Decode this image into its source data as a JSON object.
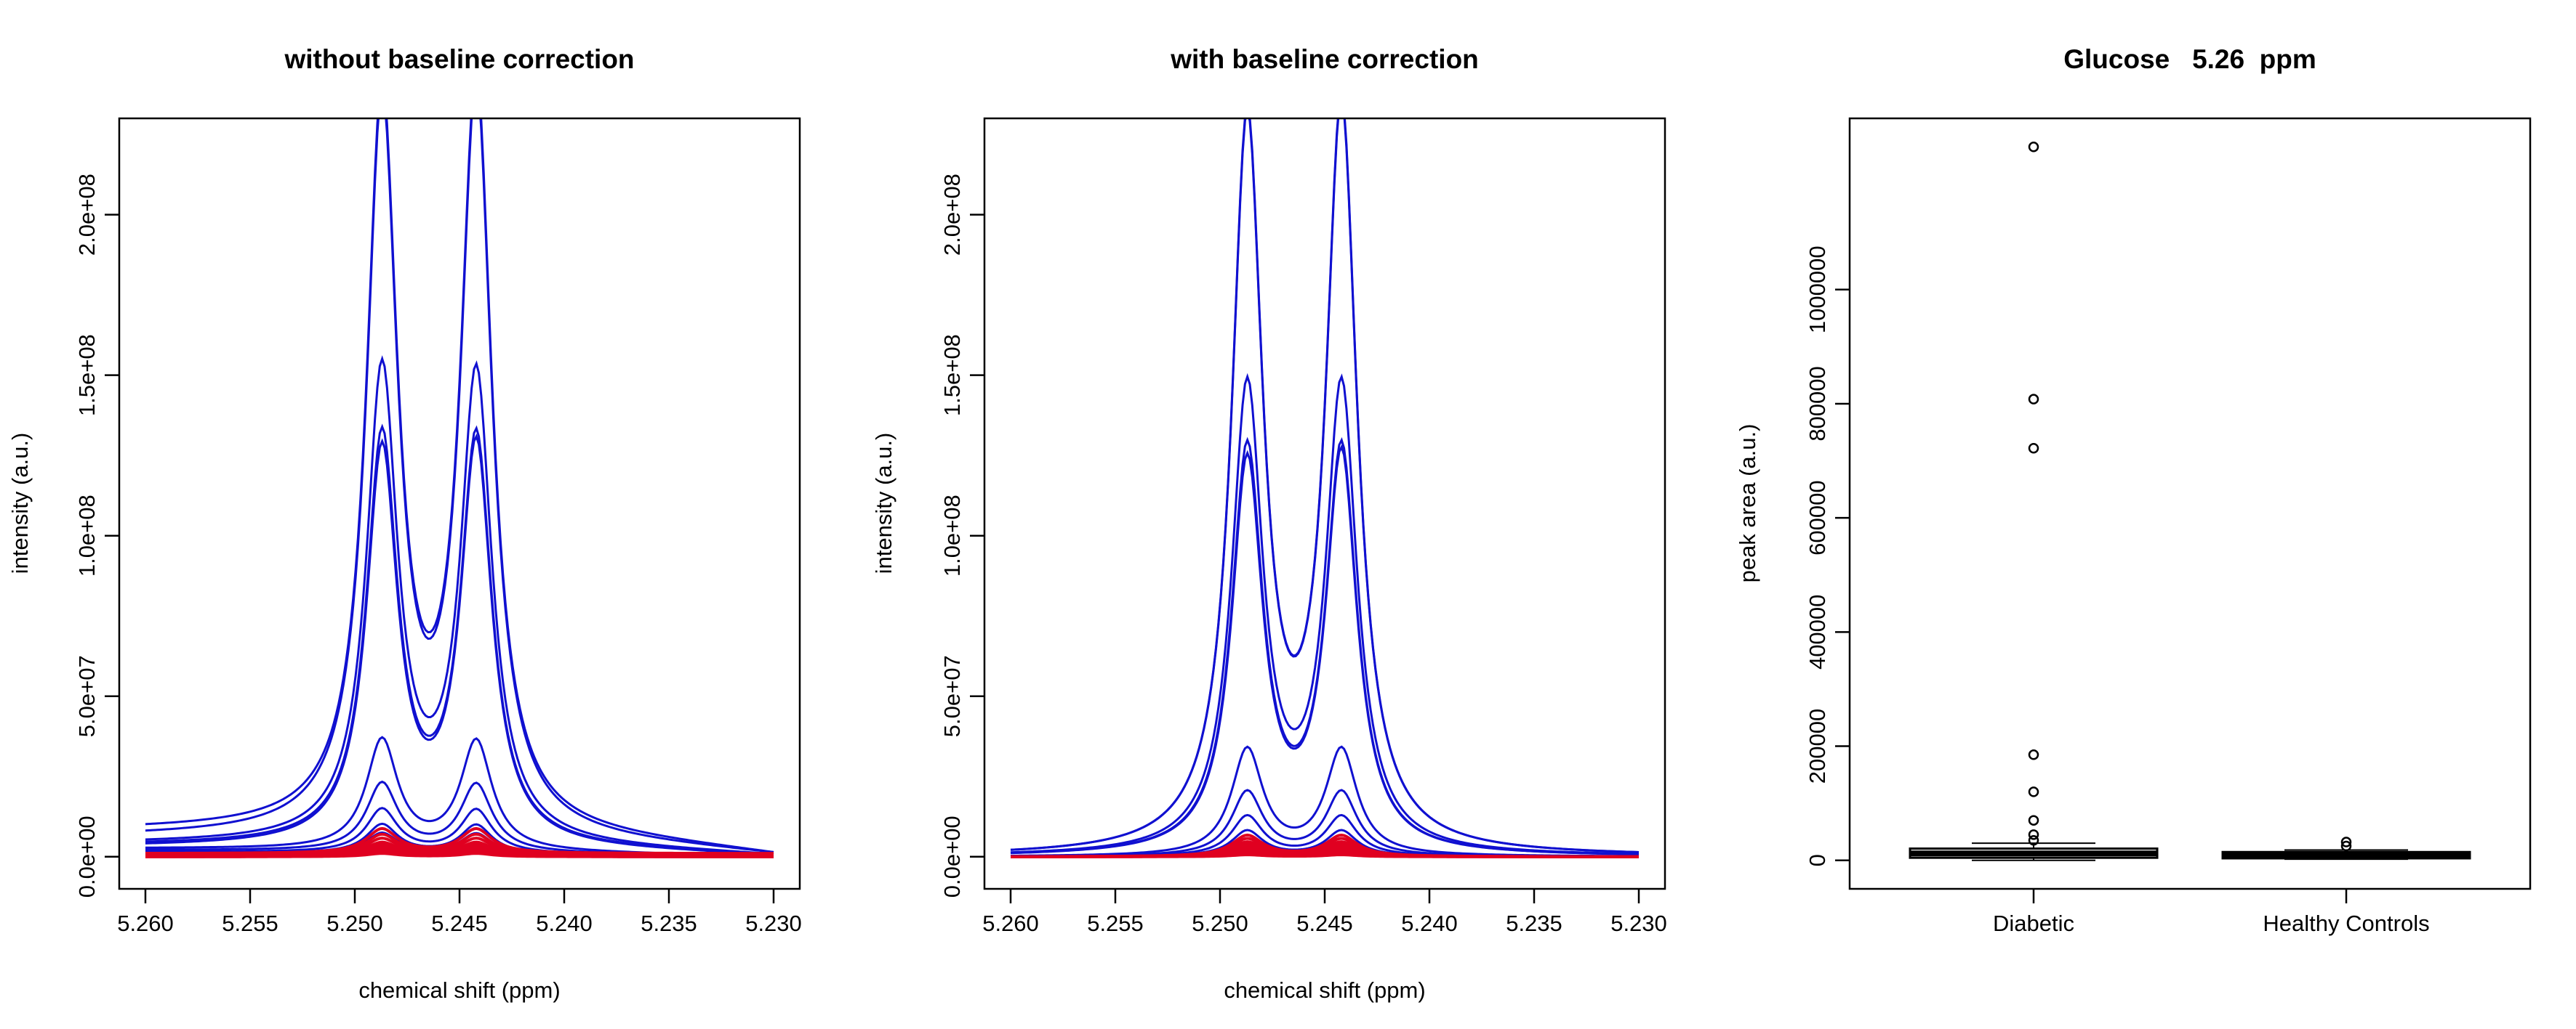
{
  "chart_data": [
    {
      "type": "line",
      "title": "without baseline correction",
      "xlabel": "chemical shift (ppm)",
      "ylabel": "intensity (a.u.)",
      "xlim": [
        5.26,
        5.23
      ],
      "x_reversed": true,
      "ylim": [
        -10000000,
        230000000
      ],
      "xticks": [
        "5.260",
        "5.255",
        "5.250",
        "5.245",
        "5.240",
        "5.235",
        "5.230"
      ],
      "yticks": [
        "0.0e+00",
        "5.0e+07",
        "1.0e+08",
        "1.5e+08",
        "2.0e+08"
      ],
      "grid": false,
      "colors": {
        "diabetic": "#1010d0",
        "healthy": "#e00020"
      },
      "peaks": {
        "p1_center": 5.2487,
        "p2_center": 5.2442,
        "width": 0.0009
      },
      "series": [
        {
          "group": "diabetic",
          "p1": 226000000,
          "p2": 230000000,
          "base_left": 8000000,
          "base_right": 0,
          "drift": 2.6
        },
        {
          "group": "diabetic",
          "p1": 225000000,
          "p2": 229000000,
          "base_left": 6000000,
          "base_right": 0,
          "drift": 2.6
        },
        {
          "group": "diabetic",
          "p1": 146000000,
          "p2": 145000000,
          "base_left": 4000000,
          "base_right": 0,
          "drift": 2.2
        },
        {
          "group": "diabetic",
          "p1": 126000000,
          "p2": 126000000,
          "base_left": 3500000,
          "base_right": 0,
          "drift": 2.2
        },
        {
          "group": "diabetic",
          "p1": 122000000,
          "p2": 124000000,
          "base_left": 3000000,
          "base_right": 0,
          "drift": 2.2
        },
        {
          "group": "diabetic",
          "p1": 34000000,
          "p2": 34000000,
          "base_left": 2500000,
          "base_right": 0,
          "drift": 1.5
        },
        {
          "group": "diabetic",
          "p1": 21000000,
          "p2": 21000000,
          "base_left": 2000000,
          "base_right": 0,
          "drift": 1.5
        },
        {
          "group": "diabetic",
          "p1": 13500000,
          "p2": 13500000,
          "base_left": 1500000,
          "base_right": 0,
          "drift": 1.5
        },
        {
          "group": "diabetic",
          "p1": 9000000,
          "p2": 9000000,
          "base_left": 1200000,
          "base_right": 0,
          "drift": 1.5
        },
        {
          "group": "diabetic",
          "p1": 6500000,
          "p2": 6500000,
          "base_left": 1000000,
          "base_right": 0,
          "drift": 1.5
        },
        {
          "group": "healthy",
          "p1": 7500000,
          "p2": 7500000,
          "base_left": 1000000,
          "base_right": 1000000,
          "drift": 1
        },
        {
          "group": "healthy",
          "p1": 6000000,
          "p2": 6000000,
          "base_left": 800000,
          "base_right": 800000,
          "drift": 1
        },
        {
          "group": "healthy",
          "p1": 5000000,
          "p2": 5000000,
          "base_left": 600000,
          "base_right": 600000,
          "drift": 1
        },
        {
          "group": "healthy",
          "p1": 4000000,
          "p2": 4000000,
          "base_left": 400000,
          "base_right": 400000,
          "drift": 1
        },
        {
          "group": "healthy",
          "p1": 3500000,
          "p2": 3500000,
          "base_left": 300000,
          "base_right": 300000,
          "drift": 1
        },
        {
          "group": "healthy",
          "p1": 3000000,
          "p2": 3000000,
          "base_left": 200000,
          "base_right": 200000,
          "drift": 1
        },
        {
          "group": "healthy",
          "p1": 2500000,
          "p2": 2500000,
          "base_left": 100000,
          "base_right": 100000,
          "drift": 1
        },
        {
          "group": "healthy",
          "p1": 2000000,
          "p2": 2000000,
          "base_left": 0,
          "base_right": 0,
          "drift": 1
        },
        {
          "group": "healthy",
          "p1": 1500000,
          "p2": 1500000,
          "base_left": 0,
          "base_right": 0,
          "drift": 1
        },
        {
          "group": "healthy",
          "p1": 1000000,
          "p2": 1000000,
          "base_left": 0,
          "base_right": 0,
          "drift": 1
        }
      ]
    },
    {
      "type": "line",
      "title": "with baseline correction",
      "xlabel": "chemical shift (ppm)",
      "ylabel": "intensity (a.u.)",
      "xlim": [
        5.26,
        5.23
      ],
      "x_reversed": true,
      "ylim": [
        -10000000,
        230000000
      ],
      "xticks": [
        "5.260",
        "5.255",
        "5.250",
        "5.245",
        "5.240",
        "5.235",
        "5.230"
      ],
      "yticks": [
        "0.0e+00",
        "5.0e+07",
        "1.0e+08",
        "1.5e+08",
        "2.0e+08"
      ],
      "grid": false,
      "colors": {
        "diabetic": "#1010d0",
        "healthy": "#e00020"
      },
      "peaks": {
        "p1_center": 5.2487,
        "p2_center": 5.2442,
        "width": 0.0009
      },
      "series": [
        {
          "group": "diabetic",
          "p1": 225000000,
          "p2": 229000000,
          "base_left": 0,
          "base_right": 0,
          "drift": 1
        },
        {
          "group": "diabetic",
          "p1": 224000000,
          "p2": 228000000,
          "base_left": 0,
          "base_right": 0,
          "drift": 1
        },
        {
          "group": "diabetic",
          "p1": 144000000,
          "p2": 144000000,
          "base_left": 0,
          "base_right": 0,
          "drift": 1
        },
        {
          "group": "diabetic",
          "p1": 125000000,
          "p2": 125000000,
          "base_left": 0,
          "base_right": 0,
          "drift": 1
        },
        {
          "group": "diabetic",
          "p1": 121000000,
          "p2": 123000000,
          "base_left": 0,
          "base_right": 0,
          "drift": 1
        },
        {
          "group": "diabetic",
          "p1": 33000000,
          "p2": 33000000,
          "base_left": 0,
          "base_right": 0,
          "drift": 1
        },
        {
          "group": "diabetic",
          "p1": 20000000,
          "p2": 20000000,
          "base_left": 0,
          "base_right": 0,
          "drift": 1
        },
        {
          "group": "diabetic",
          "p1": 12500000,
          "p2": 12500000,
          "base_left": 0,
          "base_right": 0,
          "drift": 1
        },
        {
          "group": "diabetic",
          "p1": 8000000,
          "p2": 8000000,
          "base_left": 0,
          "base_right": 0,
          "drift": 1
        },
        {
          "group": "diabetic",
          "p1": 5500000,
          "p2": 5500000,
          "base_left": 0,
          "base_right": 0,
          "drift": 1
        },
        {
          "group": "healthy",
          "p1": 6500000,
          "p2": 6500000,
          "base_left": 0,
          "base_right": 0,
          "drift": 1
        },
        {
          "group": "healthy",
          "p1": 5500000,
          "p2": 5500000,
          "base_left": 0,
          "base_right": 0,
          "drift": 1
        },
        {
          "group": "healthy",
          "p1": 4500000,
          "p2": 4500000,
          "base_left": 0,
          "base_right": 0,
          "drift": 1
        },
        {
          "group": "healthy",
          "p1": 3800000,
          "p2": 3800000,
          "base_left": 0,
          "base_right": 0,
          "drift": 1
        },
        {
          "group": "healthy",
          "p1": 3200000,
          "p2": 3200000,
          "base_left": 0,
          "base_right": 0,
          "drift": 1
        },
        {
          "group": "healthy",
          "p1": 2600000,
          "p2": 2600000,
          "base_left": 0,
          "base_right": 0,
          "drift": 1
        },
        {
          "group": "healthy",
          "p1": 2000000,
          "p2": 2000000,
          "base_left": 0,
          "base_right": 0,
          "drift": 1
        },
        {
          "group": "healthy",
          "p1": 1500000,
          "p2": 1500000,
          "base_left": 0,
          "base_right": 0,
          "drift": 1
        },
        {
          "group": "healthy",
          "p1": 1000000,
          "p2": 1000000,
          "base_left": 0,
          "base_right": 0,
          "drift": 1
        },
        {
          "group": "healthy",
          "p1": 600000,
          "p2": 600000,
          "base_left": 0,
          "base_right": 0,
          "drift": 1
        }
      ]
    },
    {
      "type": "box",
      "title": "Glucose   5.26  ppm",
      "xlabel": "",
      "ylabel": "peak area (a.u.)",
      "ylim": [
        -50000,
        1300000
      ],
      "yticks": [
        {
          "value": 0,
          "label": "0"
        },
        {
          "value": 200000,
          "label": "200000"
        },
        {
          "value": 400000,
          "label": "400000"
        },
        {
          "value": 600000,
          "label": "600000"
        },
        {
          "value": 800000,
          "label": "800000"
        },
        {
          "value": 1000000,
          "label": "1000000"
        }
      ],
      "grid": false,
      "groups": [
        {
          "label": "Diabetic",
          "q1": 7000,
          "median": 12000,
          "q3": 18000,
          "whisker_low": 0,
          "whisker_high": 30000,
          "outliers": [
            1250000,
            808000,
            722000,
            185000,
            120000,
            70000,
            45000,
            35000
          ]
        },
        {
          "label": "Healthy Controls",
          "q1": 6000,
          "median": 9000,
          "q3": 12000,
          "whisker_low": 2000,
          "whisker_high": 18000,
          "outliers": [
            32000,
            25000
          ]
        }
      ]
    }
  ]
}
